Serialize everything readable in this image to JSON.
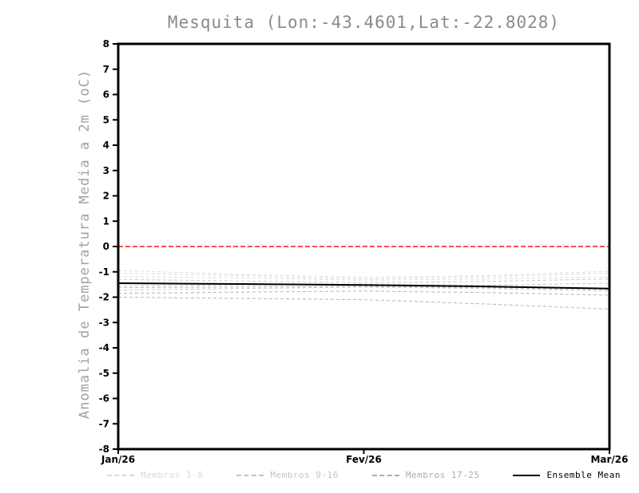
{
  "page": {
    "background": "#ffffff"
  },
  "chart_data": {
    "type": "line",
    "title": "Mesquita (Lon:-43.4601,Lat:-22.8028)",
    "ylabel": "Anomalia de Temperatura Media a 2m (oC)",
    "xlabel": "",
    "ylim": [
      -8,
      8
    ],
    "yticks": [
      8,
      7,
      6,
      5,
      4,
      3,
      2,
      1,
      0,
      -1,
      -2,
      -3,
      -4,
      -5,
      -6,
      -7,
      -8
    ],
    "categories": [
      "Jan/26",
      "Fev/26",
      "Mar/26"
    ],
    "grid": false,
    "frame_color": "#000000",
    "tick_label_color": "#000000",
    "title_color": "#8a8a8a",
    "ylabel_color": "#a2a2a2",
    "reference_line": {
      "value": 0,
      "color": "#fa4f4f",
      "style": "dashed"
    },
    "x": [
      0,
      0.5,
      1,
      1.5,
      2
    ],
    "series": [
      {
        "name": "membro-1",
        "group": "Membros 1-8",
        "color": "#dedede",
        "dashed": true,
        "width": 1,
        "values": [
          -0.95,
          -1.1,
          -1.22,
          -1.15,
          -0.98
        ]
      },
      {
        "name": "membro-2",
        "group": "Membros 1-8",
        "color": "#dedede",
        "dashed": true,
        "width": 1,
        "values": [
          -1.05,
          -1.15,
          -1.28,
          -1.2,
          -1.05
        ]
      },
      {
        "name": "membro-3",
        "group": "Membros 1-8",
        "color": "#dedede",
        "dashed": true,
        "width": 1,
        "values": [
          -1.18,
          -1.24,
          -1.33,
          -1.28,
          -1.2
        ]
      },
      {
        "name": "membro-4",
        "group": "Membros 9-16",
        "color": "#cbcbcb",
        "dashed": true,
        "width": 1,
        "values": [
          -1.3,
          -1.36,
          -1.43,
          -1.38,
          -1.28
        ]
      },
      {
        "name": "membro-5",
        "group": "Membros 9-16",
        "color": "#cbcbcb",
        "dashed": true,
        "width": 1,
        "values": [
          -1.55,
          -1.52,
          -1.5,
          -1.53,
          -1.45
        ]
      },
      {
        "name": "membro-6",
        "group": "Membros 9-16",
        "color": "#cbcbcb",
        "dashed": true,
        "width": 1,
        "values": [
          -1.72,
          -1.66,
          -1.6,
          -1.66,
          -1.76
        ]
      },
      {
        "name": "membro-7",
        "group": "Membros 17-25",
        "color": "#b5b5b5",
        "dashed": true,
        "width": 1,
        "values": [
          -1.62,
          -1.6,
          -1.57,
          -1.62,
          -1.7
        ]
      },
      {
        "name": "membro-8",
        "group": "Membros 17-25",
        "color": "#b5b5b5",
        "dashed": true,
        "width": 1,
        "values": [
          -1.85,
          -1.8,
          -1.76,
          -1.82,
          -1.92
        ]
      },
      {
        "name": "membro-9",
        "group": "Membros 17-25",
        "color": "#b5b5b5",
        "dashed": true,
        "width": 1,
        "values": [
          -2.0,
          -2.05,
          -2.1,
          -2.27,
          -2.47
        ]
      },
      {
        "name": "Ensemble Mean",
        "group": "Ensemble Mean",
        "color": "#000000",
        "dashed": false,
        "width": 2,
        "values": [
          -1.45,
          -1.48,
          -1.52,
          -1.58,
          -1.66
        ]
      }
    ],
    "legend": {
      "position": "bottom",
      "items": [
        {
          "label": "Membros 1-8",
          "color": "#d9d9d9",
          "dashed": true
        },
        {
          "label": "Membros 9-16",
          "color": "#c4c4c4",
          "dashed": true
        },
        {
          "label": "Membros 17-25",
          "color": "#adadad",
          "dashed": true
        },
        {
          "label": "Ensemble Mean",
          "color": "#000000",
          "dashed": false
        }
      ]
    }
  }
}
